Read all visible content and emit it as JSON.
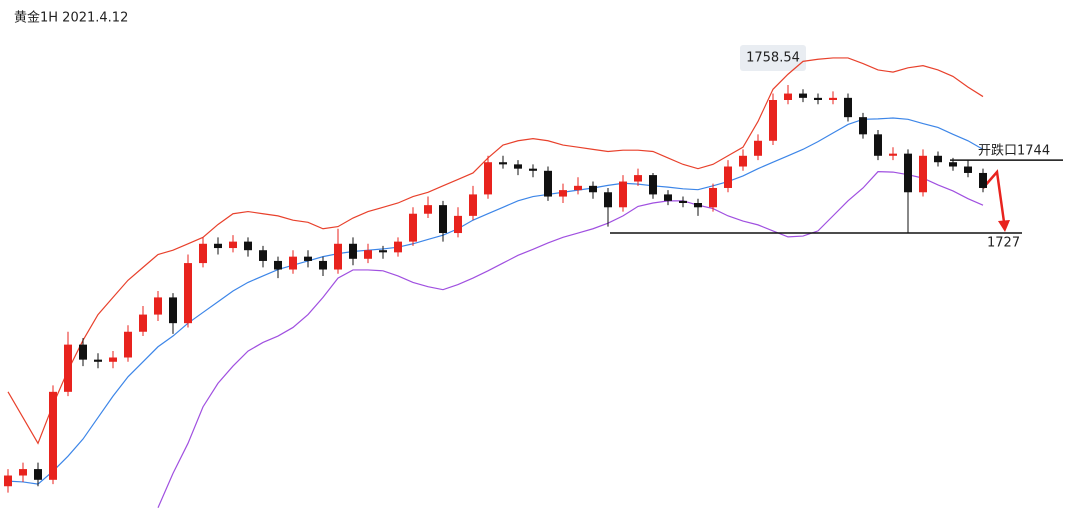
{
  "chart_data": {
    "type": "candlestick",
    "title": "黄金1H 2021.4.12",
    "ylim": [
      1661.3,
      1781.3
    ],
    "up_color": "#e8231e",
    "down_color": "#111111",
    "open": [
      1668,
      1670.5,
      1672,
      1669.5,
      1690,
      1701,
      1697.5,
      1697,
      1698,
      1704,
      1708,
      1712,
      1706,
      1720,
      1724.5,
      1723.5,
      1725,
      1723,
      1720.5,
      1718.5,
      1721.5,
      1720.5,
      1718.5,
      1724.5,
      1721,
      1723,
      1722.5,
      1725,
      1731.5,
      1733.5,
      1727,
      1731,
      1736,
      1743.5,
      1743,
      1742,
      1741.5,
      1735.5,
      1737,
      1738,
      1736.5,
      1733,
      1739,
      1740.5,
      1736,
      1734.5,
      1734,
      1733,
      1737.5,
      1742.5,
      1745,
      1748.5,
      1758,
      1759.5,
      1758.5,
      1758,
      1758.5,
      1754,
      1750,
      1745,
      1745.5,
      1736.5,
      1745,
      1743.5,
      1742.5,
      1741
    ],
    "high": [
      1672,
      1673.5,
      1673.5,
      1691.5,
      1704,
      1702.5,
      1699,
      1699.5,
      1705.5,
      1710,
      1713.5,
      1713,
      1722,
      1726,
      1726,
      1726.5,
      1726,
      1724,
      1721.5,
      1723,
      1723,
      1721.5,
      1728,
      1726,
      1724.5,
      1724,
      1726,
      1733,
      1735.5,
      1734.5,
      1733,
      1738,
      1745,
      1745,
      1744,
      1743,
      1742.5,
      1738.5,
      1740,
      1739,
      1737.5,
      1740.5,
      1742,
      1741,
      1737,
      1735.5,
      1735,
      1738.5,
      1744,
      1746.5,
      1750,
      1759.5,
      1761.5,
      1760.5,
      1759.5,
      1760,
      1759.5,
      1755,
      1751,
      1747,
      1746.5,
      1746.5,
      1746,
      1744.5,
      1744,
      1742
    ],
    "low": [
      1666.5,
      1669,
      1668,
      1668.5,
      1689,
      1696,
      1695.5,
      1695.5,
      1697,
      1703,
      1706.5,
      1703.5,
      1705,
      1719,
      1722,
      1722.5,
      1721.5,
      1719,
      1716.5,
      1717.5,
      1719,
      1717,
      1717.5,
      1719.5,
      1720,
      1721,
      1721.5,
      1724,
      1730.5,
      1725,
      1726,
      1730,
      1735,
      1742,
      1740.5,
      1740,
      1734.5,
      1734,
      1736,
      1735,
      1728.5,
      1732,
      1738,
      1735,
      1733.5,
      1733,
      1731,
      1732,
      1736.5,
      1741.5,
      1744,
      1747.5,
      1757,
      1757.5,
      1757,
      1757,
      1753,
      1749,
      1744,
      1744,
      1727,
      1735.5,
      1742.5,
      1741.5,
      1740,
      1736.5
    ],
    "close": [
      1670.5,
      1672,
      1669.5,
      1690,
      1701,
      1697.5,
      1697,
      1698,
      1704,
      1708,
      1712,
      1706,
      1720,
      1724.5,
      1723.5,
      1725,
      1723,
      1720.5,
      1718.5,
      1721.5,
      1720.5,
      1718.5,
      1724.5,
      1721,
      1723,
      1722.5,
      1725,
      1731.5,
      1733.5,
      1727,
      1731,
      1736,
      1743.5,
      1743,
      1742,
      1741.5,
      1735.5,
      1737,
      1738,
      1736.5,
      1733,
      1739,
      1740.5,
      1736,
      1734.5,
      1734,
      1733,
      1737.5,
      1742.5,
      1745,
      1748.5,
      1758,
      1759.5,
      1758.5,
      1758,
      1758.5,
      1754,
      1750,
      1745,
      1745.5,
      1736.5,
      1745,
      1743.5,
      1742.5,
      1741,
      1737.5
    ],
    "series": [
      {
        "color": "#e8412c",
        "values": [
          1690,
          1684,
          1678,
          1687,
          1695,
          1702,
          1708,
          1712,
          1716,
          1719,
          1722,
          1723,
          1724.5,
          1726,
          1729,
          1731.5,
          1732,
          1731.5,
          1731,
          1730,
          1729.5,
          1728,
          1728.5,
          1730.5,
          1732,
          1733,
          1734,
          1735.5,
          1736.5,
          1738,
          1739.5,
          1741,
          1744.5,
          1747.5,
          1748.5,
          1749,
          1748.5,
          1747.5,
          1747,
          1746.5,
          1746,
          1746.3,
          1746.3,
          1746,
          1744.5,
          1743,
          1742,
          1743,
          1745,
          1747,
          1753,
          1760.5,
          1764,
          1767,
          1767.5,
          1767.8,
          1767.8,
          1766.5,
          1765,
          1764.5,
          1765.5,
          1766,
          1765,
          1763.5,
          1761,
          1758.8
        ]
      },
      {
        "color": "#3d86e8",
        "values": [
          1669.2,
          1669,
          1668.5,
          1671.5,
          1675,
          1679,
          1684,
          1689,
          1693.5,
          1697,
          1700.5,
          1703,
          1706,
          1708.5,
          1711,
          1713.5,
          1715.5,
          1717,
          1718.5,
          1719.5,
          1720.5,
          1721.5,
          1722.2,
          1722.7,
          1723,
          1723.3,
          1723.7,
          1724.5,
          1725.5,
          1726.5,
          1728,
          1730,
          1731.5,
          1733,
          1734.5,
          1735.5,
          1736,
          1736.5,
          1737,
          1737.5,
          1738.1,
          1738.6,
          1738.4,
          1738,
          1737.7,
          1737.3,
          1737.1,
          1738,
          1739,
          1740.3,
          1742,
          1743.5,
          1745,
          1746.5,
          1748.3,
          1750.3,
          1752.3,
          1753.5,
          1753.6,
          1753.8,
          1753.5,
          1752.5,
          1751.6,
          1750,
          1748.5,
          1746.5
        ]
      },
      {
        "color": "#a050e0",
        "values": [
          null,
          null,
          null,
          null,
          null,
          null,
          null,
          null,
          null,
          null,
          1663,
          1671,
          1678,
          1686.5,
          1692,
          1696,
          1699.5,
          1701.5,
          1703,
          1705,
          1708,
          1712,
          1716.5,
          1718.4,
          1718.4,
          1718.2,
          1717,
          1715.5,
          1714.5,
          1713.8,
          1715,
          1716.5,
          1718.2,
          1720,
          1721.8,
          1723.2,
          1724.7,
          1726,
          1727,
          1728,
          1729.3,
          1731,
          1733.2,
          1734,
          1734.5,
          1734.5,
          1733.5,
          1732.7,
          1731,
          1729.8,
          1728.9,
          1727.5,
          1726.1,
          1726.3,
          1727.5,
          1731,
          1734.5,
          1737.5,
          1741.3,
          1741.2,
          1740.6,
          1739.8,
          1738.2,
          1736.8,
          1735,
          1733.5
        ]
      }
    ],
    "peak_label": "1758.54",
    "annotations": [
      {
        "label": "开跌口1744",
        "value": 1744
      },
      {
        "label": "1727",
        "value": 1727
      }
    ]
  }
}
